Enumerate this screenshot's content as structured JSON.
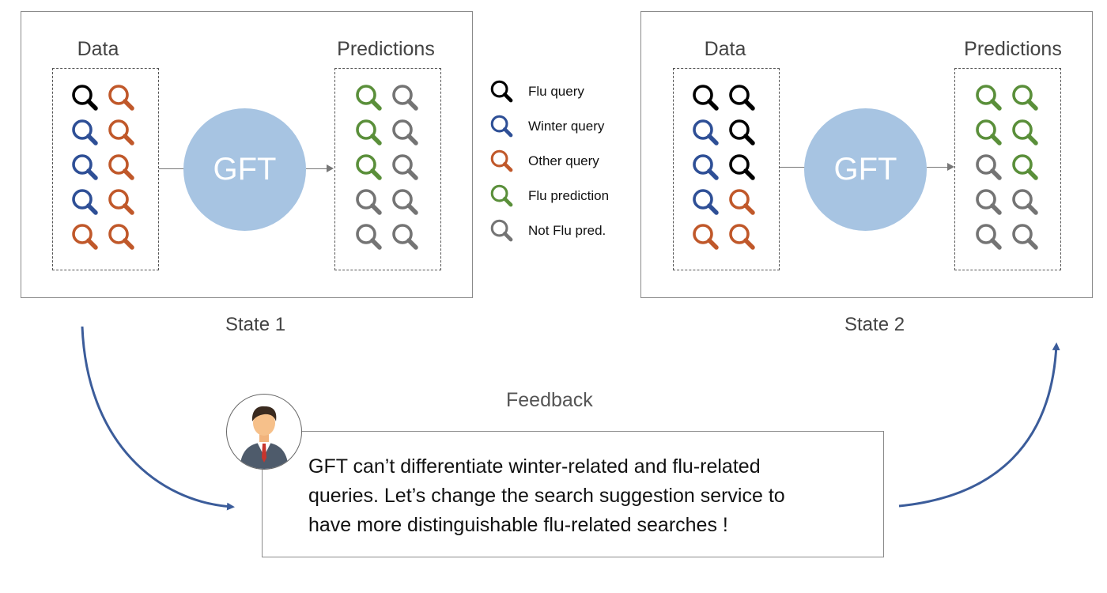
{
  "state1": {
    "data_label": "Data",
    "predictions_label": "Predictions",
    "model_label": "GFT",
    "state_label": "State 1",
    "data_icons": [
      [
        "black",
        "orange"
      ],
      [
        "blue",
        "orange"
      ],
      [
        "blue",
        "orange"
      ],
      [
        "blue",
        "orange"
      ],
      [
        "orange",
        "orange"
      ]
    ],
    "prediction_icons": [
      [
        "green",
        "gray"
      ],
      [
        "green",
        "gray"
      ],
      [
        "green",
        "gray"
      ],
      [
        "gray",
        "gray"
      ],
      [
        "gray",
        "gray"
      ]
    ]
  },
  "state2": {
    "data_label": "Data",
    "predictions_label": "Predictions",
    "model_label": "GFT",
    "state_label": "State 2",
    "data_icons": [
      [
        "black",
        "black"
      ],
      [
        "blue",
        "black"
      ],
      [
        "blue",
        "black"
      ],
      [
        "blue",
        "orange"
      ],
      [
        "orange",
        "orange"
      ]
    ],
    "prediction_icons": [
      [
        "green",
        "green"
      ],
      [
        "green",
        "green"
      ],
      [
        "gray",
        "green"
      ],
      [
        "gray",
        "gray"
      ],
      [
        "gray",
        "gray"
      ]
    ]
  },
  "legend": [
    {
      "color": "black",
      "label": "Flu query"
    },
    {
      "color": "blue",
      "label": "Winter query"
    },
    {
      "color": "orange",
      "label": "Other query"
    },
    {
      "color": "green",
      "label": "Flu prediction"
    },
    {
      "color": "gray",
      "label": "Not Flu pred."
    }
  ],
  "colors": {
    "black": "#000000",
    "blue": "#2e4f96",
    "orange": "#c0582a",
    "green": "#5a8f3a",
    "gray": "#747474",
    "arrow": "#3b5c9a",
    "circle": "#a7c4e2"
  },
  "feedback": {
    "title": "Feedback",
    "message_lines": [
      "GFT can’t differentiate winter-related and flu-related",
      "queries. Let’s change the search suggestion service to",
      "have more distinguishable flu-related searches !"
    ]
  }
}
